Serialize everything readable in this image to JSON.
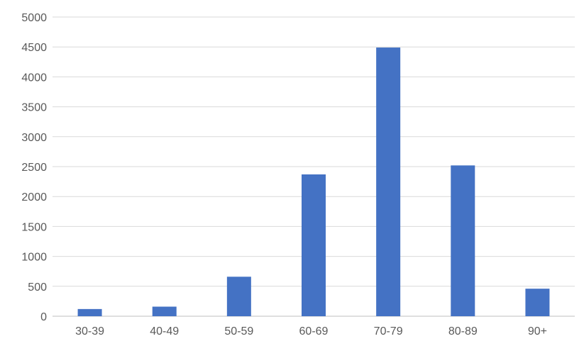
{
  "chart_data": {
    "type": "bar",
    "categories": [
      "30-39",
      "40-49",
      "50-59",
      "60-69",
      "70-79",
      "80-89",
      "90+"
    ],
    "values": [
      120,
      160,
      660,
      2370,
      4490,
      2520,
      460
    ],
    "y_ticks": [
      "0",
      "500",
      "1000",
      "1500",
      "2000",
      "2500",
      "3000",
      "3500",
      "4000",
      "4500",
      "5000"
    ],
    "ylim": [
      0,
      5000
    ],
    "grid": true,
    "legend": "none",
    "colors": {
      "bar": "#4472C4",
      "grid": "#D9D9D9",
      "text": "#595959",
      "baseline": "#BFBFBF"
    }
  }
}
